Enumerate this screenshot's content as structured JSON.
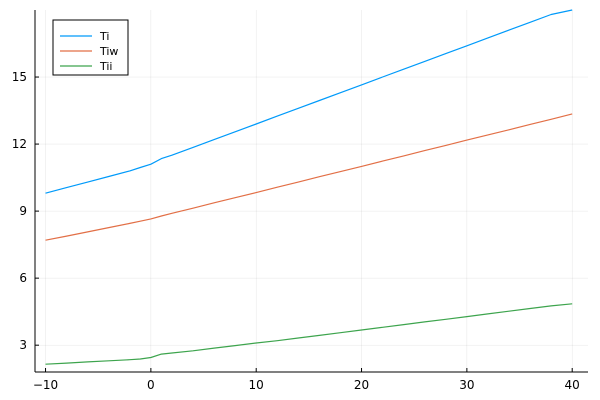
{
  "chart_data": {
    "type": "line",
    "title": "",
    "xlabel": "",
    "ylabel": "",
    "xlim": [
      -11,
      41.5
    ],
    "ylim": [
      1.8,
      18
    ],
    "x_ticks": [
      -10,
      0,
      10,
      20,
      30,
      40
    ],
    "y_ticks": [
      3,
      6,
      9,
      12,
      15
    ],
    "x_tick_labels": [
      "−10",
      "0",
      "10",
      "20",
      "30",
      "40"
    ],
    "y_tick_labels": [
      "3",
      "6",
      "9",
      "12",
      "15"
    ],
    "grid": true,
    "legend_position": "top-left",
    "x": [
      -10,
      -8,
      -6,
      -4,
      -2,
      -1,
      0,
      1,
      2,
      4,
      6,
      8,
      10,
      12,
      14,
      16,
      18,
      20,
      22,
      24,
      26,
      28,
      30,
      32,
      34,
      36,
      38,
      40
    ],
    "series": [
      {
        "name": "Ti",
        "color": "#009AFA",
        "values": [
          9.8,
          10.05,
          10.3,
          10.55,
          10.8,
          10.95,
          11.1,
          11.35,
          11.5,
          11.85,
          12.2,
          12.55,
          12.9,
          13.25,
          13.6,
          13.95,
          14.3,
          14.65,
          15.0,
          15.35,
          15.7,
          16.05,
          16.4,
          16.75,
          17.1,
          17.45,
          17.8,
          18.0
        ]
      },
      {
        "name": "Tiw",
        "color": "#E26F46",
        "values": [
          7.7,
          7.88,
          8.07,
          8.26,
          8.45,
          8.55,
          8.65,
          8.78,
          8.9,
          9.13,
          9.37,
          9.6,
          9.83,
          10.07,
          10.3,
          10.54,
          10.77,
          11.0,
          11.24,
          11.47,
          11.71,
          11.94,
          12.18,
          12.41,
          12.64,
          12.88,
          13.11,
          13.35
        ]
      },
      {
        "name": "Tii",
        "color": "#3DA44D",
        "values": [
          2.15,
          2.2,
          2.25,
          2.3,
          2.35,
          2.38,
          2.45,
          2.6,
          2.65,
          2.75,
          2.87,
          2.98,
          3.1,
          3.2,
          3.32,
          3.44,
          3.56,
          3.68,
          3.8,
          3.92,
          4.04,
          4.16,
          4.28,
          4.4,
          4.52,
          4.64,
          4.76,
          4.85
        ]
      }
    ]
  }
}
